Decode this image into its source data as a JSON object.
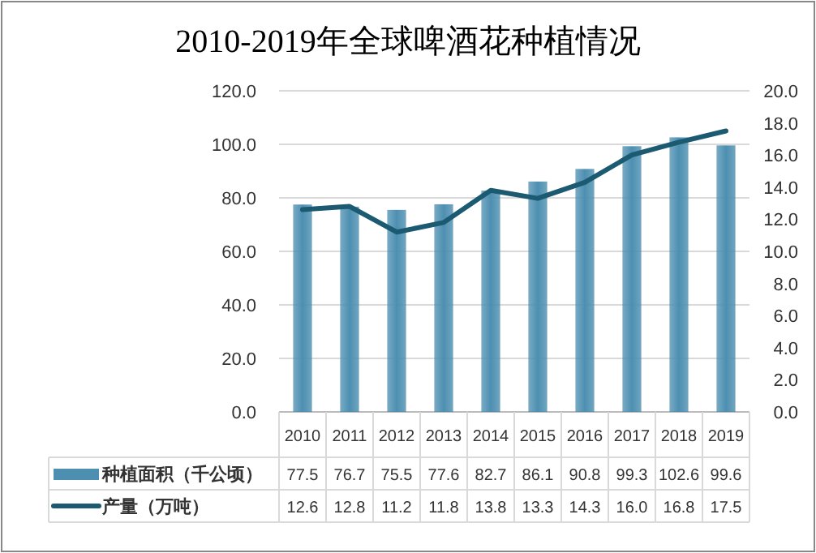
{
  "chart_data": {
    "type": "bar",
    "title": "2010-2019年全球啤酒花种植情况",
    "categories": [
      "2010",
      "2011",
      "2012",
      "2013",
      "2014",
      "2015",
      "2016",
      "2017",
      "2018",
      "2019"
    ],
    "series": [
      {
        "name": "种植面积（千公顷）",
        "color": "#4d8fb1",
        "values": [
          77.5,
          76.7,
          75.5,
          77.6,
          82.7,
          86.1,
          90.8,
          99.3,
          102.6,
          99.6
        ],
        "value_labels": [
          "77.5",
          "76.7",
          "75.5",
          "77.6",
          "82.7",
          "86.1",
          "90.8",
          "99.3",
          "102.6",
          "99.6"
        ]
      },
      {
        "name": "产量（万吨）",
        "type": "line",
        "axis": "y2",
        "color": "#1b5a70",
        "values": [
          12.6,
          12.8,
          11.2,
          11.8,
          13.8,
          13.3,
          14.3,
          16.0,
          16.8,
          17.5
        ],
        "value_labels": [
          "12.6",
          "12.8",
          "11.2",
          "11.8",
          "13.8",
          "13.3",
          "14.3",
          "16.0",
          "16.8",
          "17.5"
        ]
      }
    ],
    "ylim": [
      0,
      120
    ],
    "yticks": [
      {
        "value": 0,
        "label": "0.0"
      },
      {
        "value": 20,
        "label": "20.0"
      },
      {
        "value": 40,
        "label": "40.0"
      },
      {
        "value": 60,
        "label": "60.0"
      },
      {
        "value": 80,
        "label": "80.0"
      },
      {
        "value": 100,
        "label": "100.0"
      },
      {
        "value": 120,
        "label": "120.0"
      }
    ],
    "y2lim": [
      0,
      20
    ],
    "y2ticks": [
      {
        "value": 0,
        "label": "0.0"
      },
      {
        "value": 2,
        "label": "2.0"
      },
      {
        "value": 4,
        "label": "4.0"
      },
      {
        "value": 6,
        "label": "6.0"
      },
      {
        "value": 8,
        "label": "8.0"
      },
      {
        "value": 10,
        "label": "10.0"
      },
      {
        "value": 12,
        "label": "12.0"
      },
      {
        "value": 14,
        "label": "14.0"
      },
      {
        "value": 16,
        "label": "16.0"
      },
      {
        "value": 18,
        "label": "18.0"
      },
      {
        "value": 20,
        "label": "20.0"
      }
    ],
    "grid": "y",
    "legend": "bottom",
    "marker": "none",
    "line_style": "solid"
  }
}
